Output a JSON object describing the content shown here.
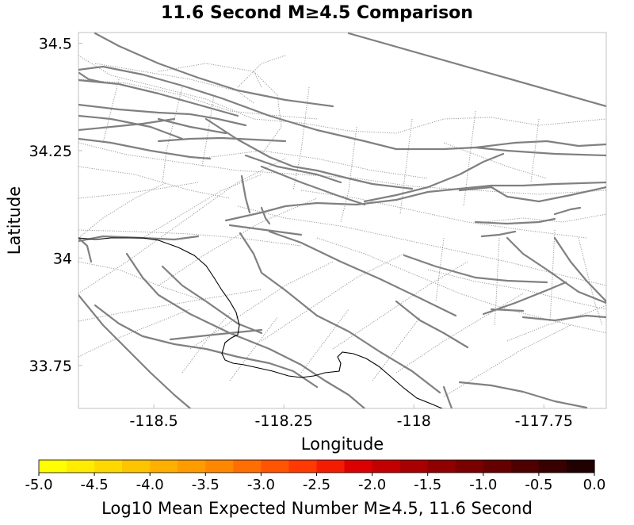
{
  "title": "11.6 Second M≥4.5 Comparison",
  "map": {
    "xlabel": "Longitude",
    "ylabel": "Latitude",
    "xlim": [
      -118.645,
      -117.63
    ],
    "ylim": [
      33.65,
      34.525
    ],
    "x_ticks": [
      {
        "value": -118.5,
        "label": "-118.5"
      },
      {
        "value": -118.25,
        "label": "-118.25"
      },
      {
        "value": -118.0,
        "label": "-118"
      },
      {
        "value": -117.75,
        "label": "-117.75"
      }
    ],
    "y_ticks": [
      {
        "value": 34.5,
        "label": "34.5"
      },
      {
        "value": 34.25,
        "label": "34.25"
      },
      {
        "value": 34.0,
        "label": "34"
      },
      {
        "value": 33.75,
        "label": "33.75"
      }
    ],
    "frame_color": "#c0c0c0"
  },
  "colorbar": {
    "title": "Log10 Mean Expected Number M≥4.5, 11.6 Second",
    "range": [
      -5.0,
      0.0
    ],
    "tick_labels": [
      "-5.0",
      "-4.5",
      "-4.0",
      "-3.5",
      "-3.0",
      "-2.5",
      "-2.0",
      "-1.5",
      "-1.0",
      "-0.5",
      "0.0"
    ],
    "colors": [
      "#ffff00",
      "#ffec00",
      "#ffd800",
      "#ffc400",
      "#ffb000",
      "#ff9c00",
      "#ff8800",
      "#ff6e00",
      "#ff5400",
      "#ff3a00",
      "#f41c00",
      "#dc0000",
      "#c20000",
      "#a80000",
      "#900000",
      "#7a0000",
      "#640000",
      "#4e0000",
      "#380000",
      "#200000"
    ]
  }
}
